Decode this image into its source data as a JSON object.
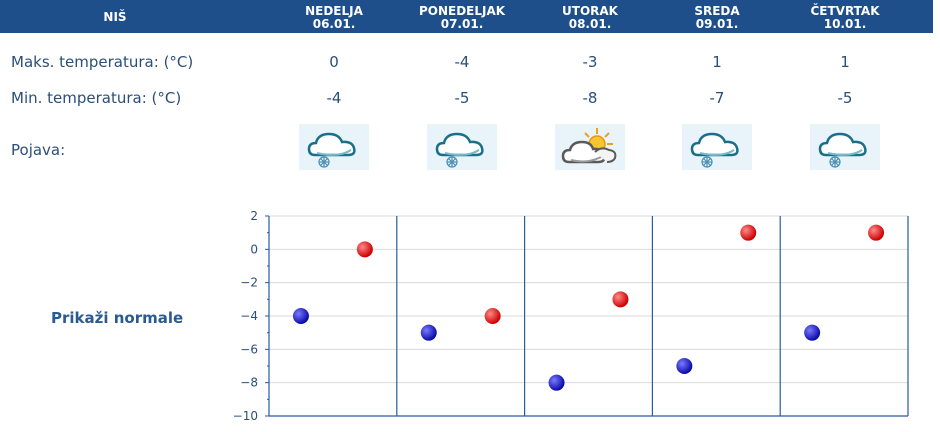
{
  "header": {
    "city": "NIŠ",
    "days": [
      {
        "name": "NEDELJA",
        "date": "06.01."
      },
      {
        "name": "PONEDELJAK",
        "date": "07.01."
      },
      {
        "name": "UTORAK",
        "date": "08.01."
      },
      {
        "name": "SREDA",
        "date": "09.01."
      },
      {
        "name": "ČETVRTAK",
        "date": "10.01."
      }
    ]
  },
  "rows": {
    "max_label": "Maks. temperatura: (°C)",
    "min_label": "Min. temperatura: (°C)",
    "phenomenon_label": "Pojava:",
    "max_values": [
      "0",
      "-4",
      "-3",
      "1",
      "1"
    ],
    "min_values": [
      "-4",
      "-5",
      "-8",
      "-7",
      "-5"
    ],
    "icons": [
      "snow-cloud-icon",
      "snow-cloud-icon",
      "sun-cloud-icon",
      "snow-cloud-icon",
      "snow-cloud-icon"
    ]
  },
  "normals_link": "Prikaži normale",
  "colors": {
    "header_bg": "#1f4f8a",
    "text": "#2a4f7a",
    "max_marker": "#cc0000",
    "min_marker": "#0a0aa8",
    "grid": "#d9d9d9",
    "axis": "#2a5aa0"
  },
  "chart_data": {
    "type": "scatter",
    "categories": [
      "06.01.",
      "07.01.",
      "08.01.",
      "09.01.",
      "10.01."
    ],
    "series": [
      {
        "values": [
          -4,
          -5,
          -8,
          -7,
          -5
        ]
      },
      {
        "values": [
          0,
          -4,
          -3,
          1,
          1
        ]
      }
    ],
    "yticks": [
      "2",
      "0",
      "−2",
      "−4",
      "−6",
      "−8",
      "−10"
    ],
    "ylim": [
      -10,
      2
    ],
    "grid": true
  }
}
